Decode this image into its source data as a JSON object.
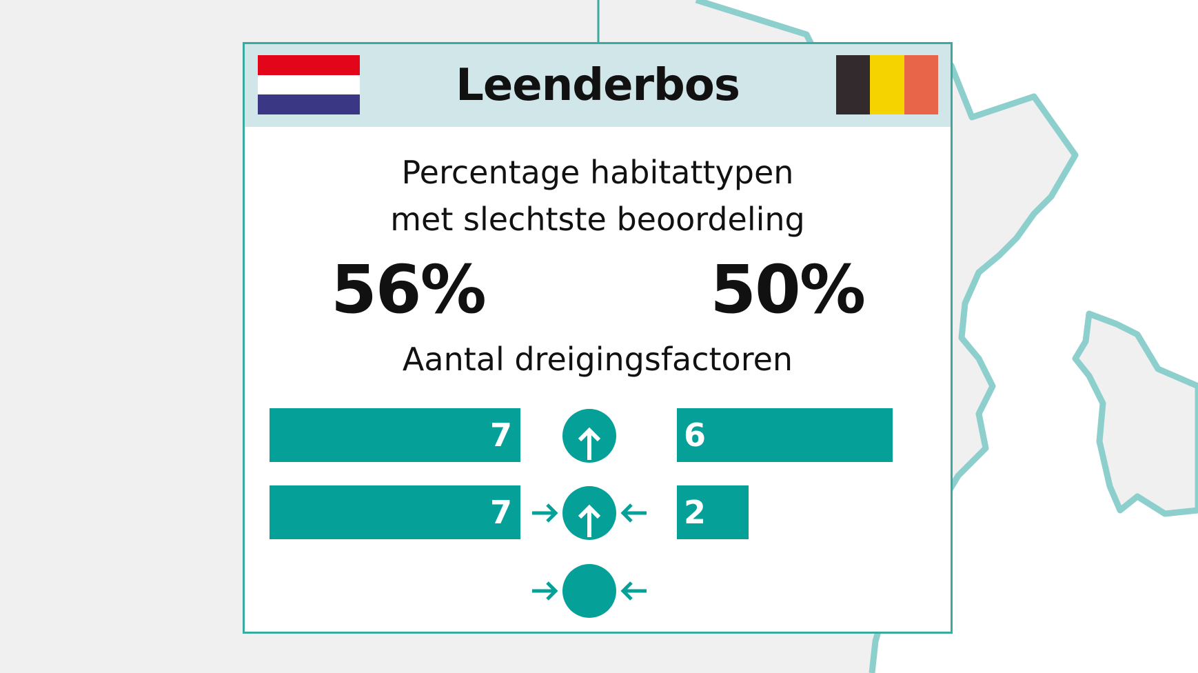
{
  "title": "Leenderbos",
  "subtitle": {
    "line1": "Percentage habitattypen",
    "line2": "met slechtste beoordeling"
  },
  "percentages": {
    "nl": "56%",
    "be": "50%"
  },
  "threats_title": "Aantal dreigingsfactoren",
  "threat_rows": [
    {
      "icon": "circle-up-arrow-icon",
      "nl": 7,
      "be": 6
    },
    {
      "icon": "circle-up-arrow-inward-arrows-icon",
      "nl": 7,
      "be": 2
    },
    {
      "icon": "circle-inward-arrows-icon"
    }
  ],
  "colors": {
    "teal": "#05a098",
    "border": "#3aa9a0",
    "header_bg": "#d0e6e8",
    "nl_flag": [
      "#e3061b",
      "#ffffff",
      "#3a3784"
    ],
    "be_flag": [
      "#332a2d",
      "#f5d300",
      "#e8654a"
    ]
  }
}
